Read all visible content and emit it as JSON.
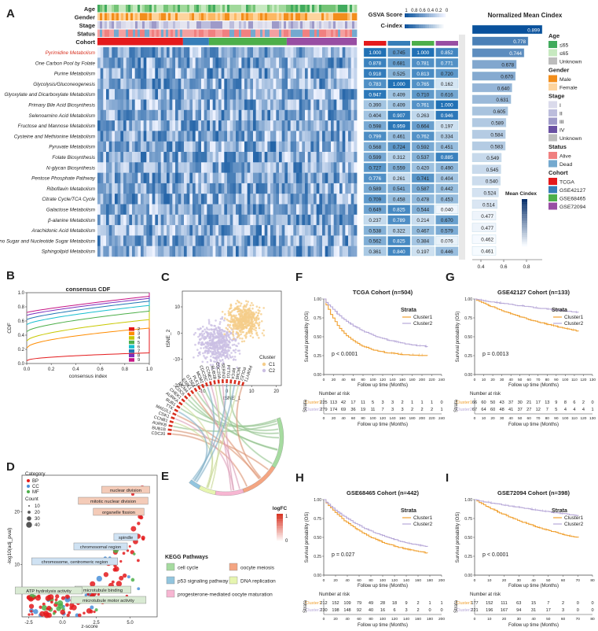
{
  "panel_letters": {
    "A": "A",
    "B": "B",
    "C": "C",
    "D": "D",
    "E": "E",
    "F": "F",
    "G": "G",
    "H": "H",
    "I": "I"
  },
  "colors": {
    "heat_hi": "#08519c",
    "heat_lo": "#eff3ff",
    "cluster1": "#f0a030",
    "cluster2": "#b7a8d8",
    "tcga": "#e41a1c",
    "gse42127": "#377eb8",
    "gse68465": "#4daf4a",
    "gse72094": "#984ea3"
  },
  "heatmap": {
    "annotation_rows": [
      "Age",
      "Gender",
      "Stage",
      "Status",
      "Cohort"
    ],
    "pathways": [
      "Pyrimidine Metabolism",
      "One Carbon Pool by Folate",
      "Purine Metabolism",
      "Glycolysis/Gluconeogenesis",
      "Glyoxylate and Dicarboxylate Metabolism",
      "Primary Bile Acid Biosynthesis",
      "Selenoamino Acid Metabolism",
      "Fructose and Mannose Metabolism",
      "Cysteine and Methionine Metabolism",
      "Pyruvate Metabolism",
      "Folate Biosynthesis",
      "N-glycan Biosynthesis",
      "Pentose Phosphate Pathway",
      "Riboflavin Metabolism",
      "Citrate Cycle/TCA Cycle",
      "Galactose Metabolism",
      "β-alanine Metabolism",
      "Arachidonic Acid Metabolism",
      "Amino Sugar and Nucleotide Sugar Metabolism",
      "Sphingolipid Metabolism"
    ],
    "gsva_legend_title": "GSVA Score",
    "gsva_ticks": [
      "1",
      "0.8",
      "0.6",
      "0.4",
      "0.2",
      "0"
    ],
    "cindex_legend_title": "C-index",
    "cindex_values": [
      [
        "1.000",
        "0.745",
        "1.000",
        "0.852"
      ],
      [
        "0.878",
        "0.681",
        "0.781",
        "0.771"
      ],
      [
        "0.918",
        "0.525",
        "0.813",
        "0.720"
      ],
      [
        "0.783",
        "1.000",
        "0.765",
        "0.162"
      ],
      [
        "0.947",
        "0.409",
        "0.710",
        "0.616"
      ],
      [
        "0.390",
        "0.409",
        "0.761",
        "1.000"
      ],
      [
        "0.404",
        "0.907",
        "0.263",
        "0.946"
      ],
      [
        "0.598",
        "0.959",
        "0.664",
        "0.197"
      ],
      [
        "0.799",
        "0.461",
        "0.762",
        "0.334"
      ],
      [
        "0.568",
        "0.724",
        "0.592",
        "0.451"
      ],
      [
        "0.599",
        "0.312",
        "0.537",
        "0.885"
      ],
      [
        "0.727",
        "0.559",
        "0.420",
        "0.490"
      ],
      [
        "0.776",
        "0.261",
        "0.741",
        "0.404"
      ],
      [
        "0.589",
        "0.541",
        "0.587",
        "0.442"
      ],
      [
        "0.709",
        "0.458",
        "0.478",
        "0.453"
      ],
      [
        "0.649",
        "0.825",
        "0.544",
        "0.040"
      ],
      [
        "0.237",
        "0.789",
        "0.214",
        "0.670"
      ],
      [
        "0.538",
        "0.322",
        "0.467",
        "0.579"
      ],
      [
        "0.562",
        "0.825",
        "0.384",
        "0.076"
      ],
      [
        "0.361",
        "0.840",
        "0.197",
        "0.446"
      ]
    ],
    "mean_title": "Normalized Mean Cindex",
    "mean_values": [
      "0.899",
      "0.778",
      "0.744",
      "0.678",
      "0.670",
      "0.640",
      "0.631",
      "0.605",
      "0.589",
      "0.584",
      "0.583",
      "0.549",
      "0.545",
      "0.540",
      "0.524",
      "0.514",
      "0.477",
      "0.477",
      "0.462",
      "0.461"
    ],
    "mean_axis_ticks": [
      "0.4",
      "0.6",
      "0.8"
    ],
    "mean_cindex_legend": "Mean Cindex",
    "legend": [
      {
        "title": "Age",
        "items": [
          {
            "label": "≤65",
            "color": "#41ab5d"
          },
          {
            "label": "≤65",
            "color": "#c7e9c0"
          },
          {
            "label": "Unknown",
            "color": "#bdbdbd"
          }
        ]
      },
      {
        "title": "Gender",
        "items": [
          {
            "label": "Male",
            "color": "#f28e1c"
          },
          {
            "label": "Female",
            "color": "#fdd49e"
          }
        ]
      },
      {
        "title": "Stage",
        "items": [
          {
            "label": "I",
            "color": "#dadaeb"
          },
          {
            "label": "II",
            "color": "#bcbddc"
          },
          {
            "label": "III",
            "color": "#9e9ac8"
          },
          {
            "label": "IV",
            "color": "#6a51a3"
          },
          {
            "label": "Unknown",
            "color": "#bdbdbd"
          }
        ]
      },
      {
        "title": "Status",
        "items": [
          {
            "label": "Alive",
            "color": "#f08080"
          },
          {
            "label": "Dead",
            "color": "#74a9cf"
          }
        ]
      },
      {
        "title": "Cohort",
        "items": [
          {
            "label": "TCGA",
            "color": "#e41a1c"
          },
          {
            "label": "GSE42127",
            "color": "#377eb8"
          },
          {
            "label": "GSE68465",
            "color": "#4daf4a"
          },
          {
            "label": "GSE72094",
            "color": "#984ea3"
          }
        ]
      }
    ]
  },
  "chart_data": [
    {
      "type": "line",
      "title": "consensus CDF",
      "xlabel": "consensus index",
      "ylabel": "CDF",
      "xlim": [
        0,
        1
      ],
      "ylim": [
        0,
        1
      ],
      "xticks": [
        "0.0",
        "0.2",
        "0.4",
        "0.6",
        "0.8",
        "1.0"
      ],
      "yticks": [
        "0.0",
        "0.2",
        "0.4",
        "0.6",
        "0.8",
        "1.0"
      ],
      "series": [
        {
          "name": "2",
          "color": "#e41a1c"
        },
        {
          "name": "3",
          "color": "#ff8c00"
        },
        {
          "name": "4",
          "color": "#c8c800"
        },
        {
          "name": "5",
          "color": "#4daf4a"
        },
        {
          "name": "6",
          "color": "#17becf"
        },
        {
          "name": "7",
          "color": "#1f77b4"
        },
        {
          "name": "8",
          "color": "#7b2fbe"
        },
        {
          "name": "9",
          "color": "#c71585"
        }
      ]
    },
    {
      "type": "scatter",
      "title": "",
      "xlabel": "tSNE_1",
      "ylabel": "tSNE_2",
      "xlim": [
        -18,
        22
      ],
      "ylim": [
        -20,
        16
      ],
      "xticks": [
        "-10",
        "0",
        "10",
        "20"
      ],
      "yticks": [
        "10",
        "0",
        "-10",
        "-20"
      ],
      "legend_title": "Cluster",
      "series": [
        {
          "name": "C1",
          "color": "#f5cd8a"
        },
        {
          "name": "C2",
          "color": "#cbbfe3"
        }
      ]
    },
    {
      "type": "scatter",
      "title": "",
      "xlabel": "z-score",
      "ylabel": "-log10(adj_pval)",
      "xlim": [
        -3,
        7
      ],
      "ylim": [
        0,
        27
      ],
      "xticks": [
        "-2.5",
        "0.0",
        "2.5",
        "5.0"
      ],
      "yticks": [
        "10",
        "20"
      ],
      "category_title": "Category",
      "categories": [
        {
          "name": "BP",
          "color": "#e41a1c"
        },
        {
          "name": "CC",
          "color": "#4a90d9"
        },
        {
          "name": "MF",
          "color": "#4daf4a"
        }
      ],
      "count_title": "Count",
      "count_values": [
        "10",
        "20",
        "30",
        "40"
      ],
      "annotations": [
        "nuclear division",
        "mitotic nuclear division",
        "organelle fission",
        "spindle",
        "chromosomal region",
        "chromosome, centromeric region",
        "microtubule binding",
        "ATP hydrolysis activity",
        "microtubule motor activity"
      ]
    },
    {
      "type": "chord",
      "genes": [
        "CDC20",
        "BUB1B",
        "AURKB",
        "CCNB1",
        "CDK1",
        "MAD2L1",
        "TTK",
        "BUB1",
        "AURKA",
        "CHEK1",
        "CDC6",
        "MCM4",
        "ESPL1",
        "GTSE1",
        "PLK1",
        "MCM2",
        "CDC25C",
        "CCNE2",
        "BUB1B",
        "CDC20A",
        "SERIN3",
        "PTTG1",
        "RFC4",
        "MCM6",
        "POLE2",
        "PKMYT1"
      ],
      "logfc_title": "logFC",
      "logfc_ticks": [
        "1",
        "0"
      ],
      "pathways_title": "KEGG Pathways",
      "pathways": [
        {
          "name": "cell cycle",
          "color": "#a6dba0"
        },
        {
          "name": "oocyte meiosis",
          "color": "#f4a582"
        },
        {
          "name": "p53 signaling pathway",
          "color": "#92c5de"
        },
        {
          "name": "DNA replication",
          "color": "#e6f5b0"
        },
        {
          "name": "progesterone-mediated oocyte maturation",
          "color": "#f7b6d2"
        }
      ]
    },
    {
      "type": "line",
      "title": "TCGA Cohort (n=504)",
      "xlabel": "Follow up time (Months)",
      "ylabel": "Survival probability (OS)",
      "xmax": 240,
      "xticks": [
        "0",
        "20",
        "40",
        "60",
        "80",
        "100",
        "120",
        "140",
        "160",
        "180",
        "200",
        "220",
        "240"
      ],
      "yticks": [
        "0.00",
        "0.25",
        "0.50",
        "0.75",
        "1.00"
      ],
      "pvalue": "p < 0.0001",
      "strata_title": "Strata",
      "series": [
        {
          "name": "Cluster1"
        },
        {
          "name": "Cluster2"
        }
      ],
      "risk_title": "Number at risk",
      "risk_axis": "Strata",
      "risk": [
        [
          "225",
          "113",
          "42",
          "17",
          "11",
          "5",
          "3",
          "3",
          "2",
          "1",
          "1",
          "1",
          "0"
        ],
        [
          "279",
          "174",
          "69",
          "36",
          "19",
          "11",
          "7",
          "3",
          "3",
          "2",
          "2",
          "2",
          "1"
        ]
      ]
    },
    {
      "type": "line",
      "title": "GSE42127 Cohort (n=133)",
      "xlabel": "Follow up time (Months)",
      "ylabel": "Survival probability (OS)",
      "xmax": 130,
      "xticks": [
        "0",
        "10",
        "20",
        "30",
        "40",
        "50",
        "60",
        "70",
        "80",
        "90",
        "100",
        "110",
        "120",
        "130"
      ],
      "yticks": [
        "0.00",
        "0.25",
        "0.50",
        "0.75",
        "1.00"
      ],
      "pvalue": "p = 0.0013",
      "strata_title": "Strata",
      "series": [
        {
          "name": "Cluster1"
        },
        {
          "name": "Cluster2"
        }
      ],
      "risk_title": "Number at risk",
      "risk_axis": "Strata",
      "risk": [
        [
          "66",
          "60",
          "50",
          "43",
          "37",
          "30",
          "21",
          "17",
          "13",
          "9",
          "8",
          "6",
          "2",
          "0"
        ],
        [
          "67",
          "64",
          "60",
          "48",
          "41",
          "37",
          "27",
          "12",
          "7",
          "5",
          "4",
          "4",
          "4",
          "1"
        ]
      ]
    },
    {
      "type": "line",
      "title": "GSE68465 Cohort (n=442)",
      "xlabel": "Follow up time (Months)",
      "ylabel": "Survival probability (OS)",
      "xmax": 200,
      "xticks": [
        "0",
        "20",
        "40",
        "60",
        "80",
        "100",
        "120",
        "140",
        "160",
        "180",
        "200"
      ],
      "yticks": [
        "0.00",
        "0.25",
        "0.50",
        "0.75",
        "1.00"
      ],
      "pvalue": "p = 0.027",
      "strata_title": "Strata",
      "series": [
        {
          "name": "Cluster1"
        },
        {
          "name": "Cluster2"
        }
      ],
      "risk_title": "Number at risk",
      "risk_axis": "Strata",
      "risk": [
        [
          "212",
          "152",
          "109",
          "79",
          "49",
          "28",
          "18",
          "9",
          "2",
          "1",
          "1"
        ],
        [
          "230",
          "198",
          "148",
          "92",
          "40",
          "16",
          "6",
          "3",
          "2",
          "0",
          "0"
        ]
      ]
    },
    {
      "type": "line",
      "title": "GSE72094 Cohort (n=398)",
      "xlabel": "Follow up time (Months)",
      "ylabel": "Survival probability (OS)",
      "xmax": 80,
      "xticks": [
        "0",
        "10",
        "20",
        "30",
        "40",
        "50",
        "60",
        "70",
        "80"
      ],
      "yticks": [
        "0.00",
        "0.25",
        "0.50",
        "0.75",
        "1.00"
      ],
      "pvalue": "p < 0.0001",
      "strata_title": "Strata",
      "series": [
        {
          "name": "Cluster1"
        },
        {
          "name": "Cluster2"
        }
      ],
      "risk_title": "Number at risk",
      "risk_axis": "Strata",
      "risk": [
        [
          "177",
          "152",
          "111",
          "63",
          "15",
          "7",
          "2",
          "0",
          "0"
        ],
        [
          "221",
          "196",
          "167",
          "94",
          "31",
          "17",
          "3",
          "0",
          "0"
        ]
      ]
    }
  ]
}
